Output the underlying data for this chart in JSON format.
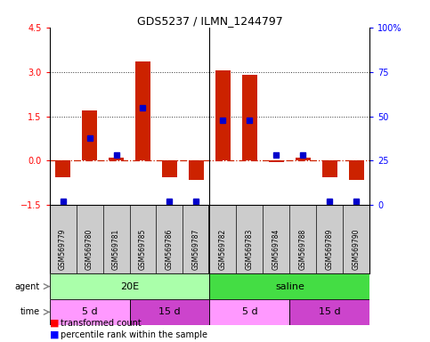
{
  "title": "GDS5237 / ILMN_1244797",
  "samples": [
    "GSM569779",
    "GSM569780",
    "GSM569781",
    "GSM569785",
    "GSM569786",
    "GSM569787",
    "GSM569782",
    "GSM569783",
    "GSM569784",
    "GSM569788",
    "GSM569789",
    "GSM569790"
  ],
  "red_values": [
    -0.55,
    1.7,
    0.1,
    3.35,
    -0.55,
    -0.65,
    3.05,
    2.9,
    -0.05,
    0.1,
    -0.55,
    -0.65
  ],
  "blue_values_pct": [
    2,
    38,
    28,
    55,
    2,
    2,
    48,
    48,
    28,
    28,
    2,
    2
  ],
  "ylim_left": [
    -1.5,
    4.5
  ],
  "ylim_right": [
    0,
    100
  ],
  "yticks_left": [
    -1.5,
    0.0,
    1.5,
    3.0,
    4.5
  ],
  "yticks_right": [
    0,
    25,
    50,
    75,
    100
  ],
  "agent_groups": [
    {
      "label": "20E",
      "start": 0,
      "end": 6,
      "color": "#AAFFAA"
    },
    {
      "label": "saline",
      "start": 6,
      "end": 12,
      "color": "#44DD44"
    }
  ],
  "time_groups": [
    {
      "label": "5 d",
      "start": 0,
      "end": 3,
      "color": "#FF99FF"
    },
    {
      "label": "15 d",
      "start": 3,
      "end": 6,
      "color": "#CC44CC"
    },
    {
      "label": "5 d",
      "start": 6,
      "end": 9,
      "color": "#FF99FF"
    },
    {
      "label": "15 d",
      "start": 9,
      "end": 12,
      "color": "#CC44CC"
    }
  ],
  "bar_color": "#CC2200",
  "dot_color": "#0000CC",
  "zero_line_color": "#CC2200",
  "hline_color": "#333333",
  "label_bg_color": "#CCCCCC",
  "bar_width": 0.55,
  "dot_size": 4,
  "main_bg": "#FFFFFF"
}
